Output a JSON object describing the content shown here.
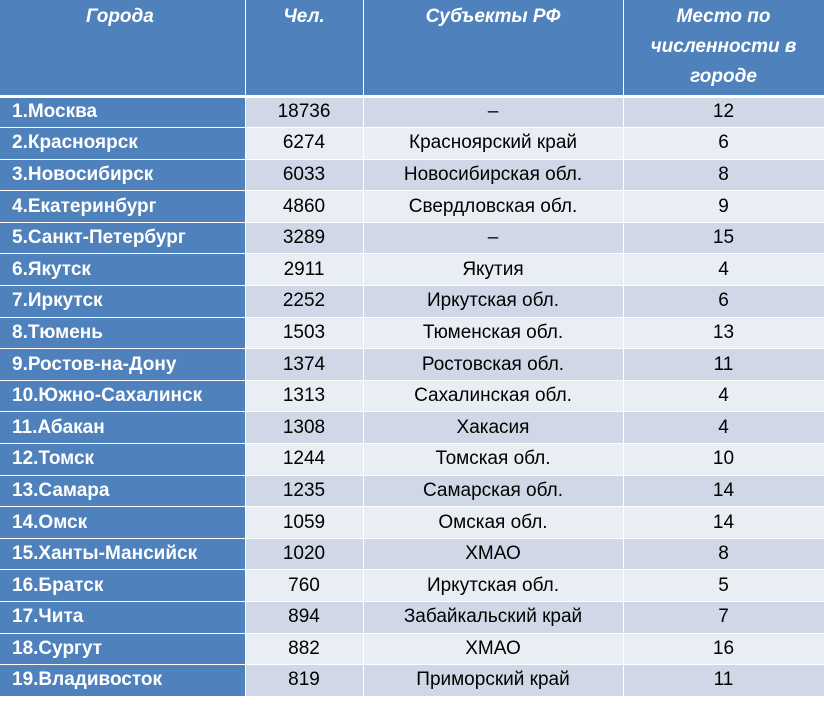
{
  "table": {
    "headers": [
      "Города",
      "Чел.",
      "Субъекты РФ",
      "Место по численности в городе"
    ],
    "rows": [
      {
        "city": "1.Москва",
        "people": "18736",
        "subject": "–",
        "rank": "12"
      },
      {
        "city": "2.Красноярск",
        "people": "6274",
        "subject": "Красноярский край",
        "rank": "6"
      },
      {
        "city": "3.Новосибирск",
        "people": "6033",
        "subject": "Новосибирская обл.",
        "rank": "8"
      },
      {
        "city": "4.Екатеринбург",
        "people": "4860",
        "subject": "Свердловская обл.",
        "rank": "9"
      },
      {
        "city": "5.Санкт-Петербург",
        "people": "3289",
        "subject": "–",
        "rank": "15"
      },
      {
        "city": "6.Якутск",
        "people": "2911",
        "subject": "Якутия",
        "rank": "4"
      },
      {
        "city": "7.Иркутск",
        "people": "2252",
        "subject": "Иркутская обл.",
        "rank": "6"
      },
      {
        "city": "8.Тюмень",
        "people": "1503",
        "subject": "Тюменская обл.",
        "rank": "13"
      },
      {
        "city": "9.Ростов-на-Дону",
        "people": "1374",
        "subject": "Ростовская обл.",
        "rank": "11"
      },
      {
        "city": "10.Южно-Сахалинск",
        "people": "1313",
        "subject": "Сахалинская обл.",
        "rank": "4"
      },
      {
        "city": "11.Абакан",
        "people": "1308",
        "subject": "Хакасия",
        "rank": "4"
      },
      {
        "city": "12.Томск",
        "people": "1244",
        "subject": "Томская обл.",
        "rank": "10"
      },
      {
        "city": "13.Самара",
        "people": "1235",
        "subject": "Самарская обл.",
        "rank": "14"
      },
      {
        "city": "14.Омск",
        "people": "1059",
        "subject": "Омская обл.",
        "rank": "14"
      },
      {
        "city": "15.Ханты-Мансийск",
        "people": "1020",
        "subject": "ХМАО",
        "rank": "8"
      },
      {
        "city": "16.Братск",
        "people": "760",
        "subject": "Иркутская обл.",
        "rank": "5"
      },
      {
        "city": "17.Чита",
        "people": "894",
        "subject": "Забайкальский край",
        "rank": "7"
      },
      {
        "city": "18.Сургут",
        "people": "882",
        "subject": "ХМАО",
        "rank": "16"
      },
      {
        "city": "19.Владивосток",
        "people": "819",
        "subject": "Приморский край",
        "rank": "11"
      }
    ]
  },
  "colors": {
    "header_bg": "#4f81bd",
    "row_odd": "#d0d8e8",
    "row_even": "#e9edf4"
  }
}
